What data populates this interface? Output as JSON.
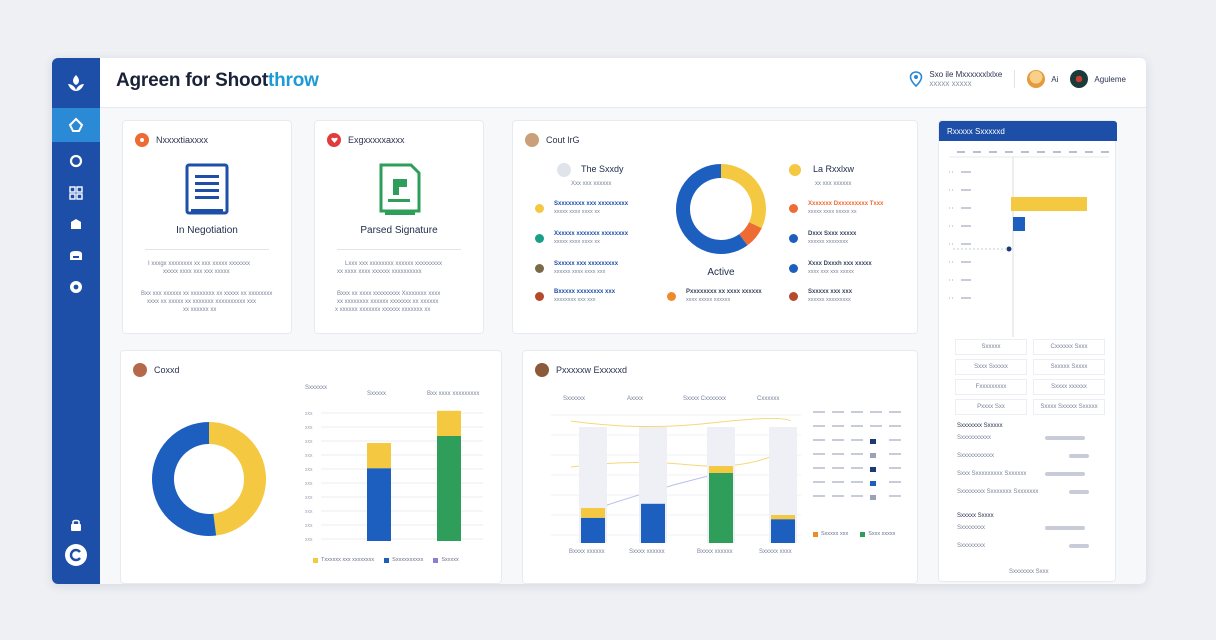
{
  "app": {
    "title_main": "Agreen for Shoot",
    "title_accent": "throw"
  },
  "topbar": {
    "location_line1": "Sxo ile Mxxxxxxlxlxe",
    "location_line2": "xxxxx xxxxx",
    "user1": "Ai",
    "user2": "Aguleme"
  },
  "sidebar": {
    "items": [
      "home",
      "circle",
      "grid",
      "box",
      "folder",
      "globe"
    ],
    "bottom": [
      "lock",
      "refresh"
    ]
  },
  "colors": {
    "primary": "#1d4fa8",
    "accent": "#2b8ad6",
    "yellow": "#f5c842",
    "green": "#2e9e5a",
    "orange": "#ee6b33"
  },
  "card1": {
    "header": "Nxxxxtiaxxxx",
    "doc_title": "In Negotiation",
    "text1": "I xxxgx xxxxxxxx xx xxx xxxxx xxxxxxx",
    "text2": "xxxxx xxxx xxx xxx xxxxx",
    "text3": "Bxx xxx xxxxxx xx xxxxxxxx xx xxxxx xx xxxxxxxx",
    "text4": "xxxx xx xxxxx xx xxxxxxx xxxxxxxxxx xxx",
    "text5": "xx xxxxxx xx"
  },
  "card2": {
    "header": "Exgxxxxxaxxx",
    "doc_title": "Parsed Signature",
    "text1": "Lxxx xxx xxxxxxxx xxxxxx xxxxxxxxx",
    "text2": "xx xxxx xxxx xxxxxx xxxxxxxxxx",
    "text3": "Bxxx xx xxxx xxxxxxxxx Xxxxxxxx xxxx",
    "text4": "xx xxxxxxxx xxxxxx xxxxxxx xx xxxxxx",
    "text5": "x xxxxxx xxxxxxx xxxxxx xxxxxxx xx"
  },
  "card3": {
    "header": "Cout lrG",
    "left_title": "The Sxxdy",
    "left_sub": "Xxx xxx xxxxxx",
    "center_label": "Active",
    "right_title": "La Rxxlxw",
    "right_sub": "xx xxx xxxxxx",
    "items_left": [
      {
        "label": "Sxxxxxxxx xxx xxxxxxxxx",
        "sub": "xxxxx xxxx xxxx xx"
      },
      {
        "label": "Xxxxxx xxxxxxx xxxxxxxx",
        "sub": "xxxxx xxxx xxxx xx"
      },
      {
        "label": "Sxxxxx xxx xxxxxxxxx",
        "sub": "xxxxxx xxxx xxxx xxx"
      },
      {
        "label": "Bxxxxx xxxxxxxx xxx",
        "sub": "xxxxxxxx xxx xxx"
      }
    ],
    "items_mid": [
      {
        "label": "Pxxxxxxxx xx xxxx xxxxxx",
        "sub": "xxxx xxxxx xxxxxx"
      }
    ],
    "items_right": [
      {
        "label": "Xxxxxxx Dxxxxxxxxx Txxx",
        "sub": "xxxxx xxxx xxxxx xx"
      },
      {
        "label": "Dxxx Sxxx xxxxx",
        "sub": "xxxxxx xxxxxxxx"
      },
      {
        "label": "Xxxx Dxxxh xxx xxxxx",
        "sub": "xxxx xxx xxx xxxxx"
      },
      {
        "label": "Sxxxxx xxx xxx",
        "sub": "xxxxxx xxxxxxxxx"
      }
    ]
  },
  "card4": {
    "header": "Coxxd",
    "col1": "Sxxxxxx",
    "col2": "Sxxxxx",
    "col3": "Bxx xxxx xxxxxxxxx",
    "ticks": [
      "xxx",
      "xxx",
      "xxx",
      "xxx",
      "xxx",
      "xxx",
      "xxx",
      "xxx",
      "xxx",
      "xxx"
    ],
    "legend": [
      "Txxxxxx xxx xxxxxxxx",
      "Sxxxxxxxxxx",
      "Sxxxxx"
    ]
  },
  "card5": {
    "header": "Pxxxxxw Exxxxxd",
    "cols": [
      "Sxxxxxx",
      "Axxxx",
      "Sxxxx Cxxxxxxx",
      "Cxxxxxx"
    ],
    "xlabels": [
      "Bxxxx xxxxxx",
      "Sxxxx xxxxxx",
      "Bxxxx xxxxxx",
      "Sxxxxx xxxx"
    ],
    "legend": [
      "Sxxxxx xxx",
      "Sxxx xxxxx"
    ]
  },
  "card6": {
    "header": "Rxxxxx Sxxxxxd",
    "table_rows": [
      [
        "Sxxxxx",
        "Cxxxxxx Sxxx"
      ],
      [
        "Sxxx Sxxxxx",
        "Sxxxxx Sxxxx"
      ],
      [
        "Fxxxxxxxxx",
        "Sxxxx xxxxxx"
      ],
      [
        "Pxxxx Sxx",
        "Sxxxx Sxxxxx Sxxxxx"
      ]
    ],
    "section2": "Sxxxxxxx Sxxxxx",
    "list2": [
      "Sxxxxxxxxxx",
      "Sxxxxxxxxxxx",
      "Sxxx Sxxxxxxxxx Sxxxxxx",
      "Sxxxxxxxx Sxxxxxxx Sxxxxxxx"
    ],
    "section3": "Sxxxxx Sxxxx",
    "list3": [
      "Sxxxxxxxx",
      "Sxxxxxxxx"
    ],
    "footer": "Sxxxxxxx Sxxx"
  },
  "chart_data": [
    {
      "type": "pie",
      "title": "Active",
      "values": [
        32,
        8,
        60
      ],
      "colors": [
        "#f5c842",
        "#ee6b33",
        "#1d5fbf"
      ]
    },
    {
      "type": "pie",
      "title": "Coxxd",
      "values": [
        48,
        52
      ],
      "colors": [
        "#f5c842",
        "#1d5fbf"
      ]
    },
    {
      "type": "bar",
      "series": [
        {
          "name": "",
          "values": [
            52,
            75
          ]
        },
        {
          "name": "",
          "values": [
            18,
            18
          ]
        }
      ]
    },
    {
      "type": "bar",
      "series": [
        {
          "name": "",
          "values": [
            18,
            28,
            50,
            17
          ]
        },
        {
          "name": "",
          "values": [
            7,
            0,
            5,
            3
          ]
        }
      ]
    }
  ]
}
